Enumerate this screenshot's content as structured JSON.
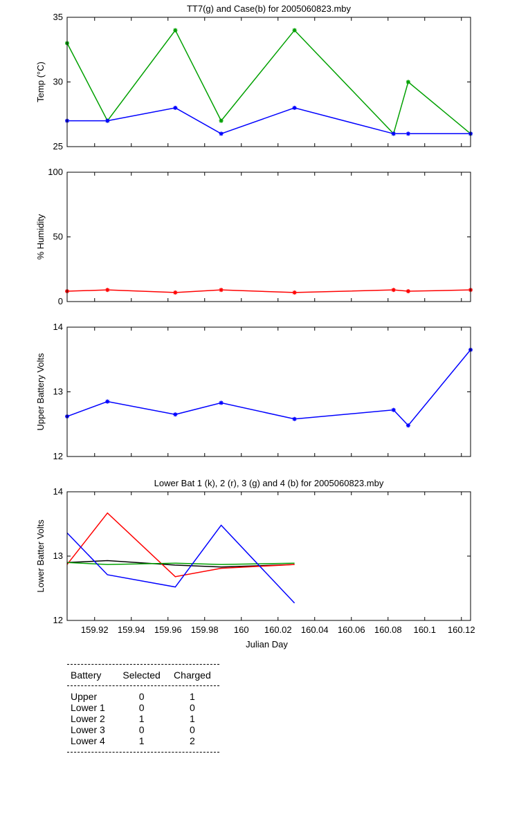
{
  "chart_data": [
    {
      "type": "line",
      "title": "TT7(g) and Case(b) for 2005060823.mby",
      "xlabel": "",
      "ylabel": "Temp  (°C)",
      "xlim": [
        159.905,
        160.125
      ],
      "ylim": [
        25,
        35
      ],
      "yticks": [
        "25",
        "30",
        "35"
      ],
      "x": [
        159.905,
        159.927,
        159.964,
        159.989,
        160.029,
        160.083,
        160.091,
        160.125
      ],
      "series": [
        {
          "name": "TT7",
          "color": "#00a000",
          "markers": true,
          "values": [
            33,
            27,
            34,
            27,
            34,
            26,
            30,
            26
          ]
        },
        {
          "name": "Case",
          "color": "#0000ff",
          "markers": true,
          "values": [
            27,
            27,
            28,
            26,
            28,
            26,
            26,
            26
          ]
        }
      ]
    },
    {
      "type": "line",
      "title": "",
      "xlabel": "",
      "ylabel": "% Humidity",
      "xlim": [
        159.905,
        160.125
      ],
      "ylim": [
        0,
        100
      ],
      "yticks": [
        "0",
        "50",
        "100"
      ],
      "x": [
        159.905,
        159.927,
        159.964,
        159.989,
        160.029,
        160.083,
        160.091,
        160.125
      ],
      "series": [
        {
          "color": "#ff0000",
          "markers": true,
          "values": [
            8,
            9,
            7,
            9,
            7,
            9,
            8,
            9
          ]
        }
      ]
    },
    {
      "type": "line",
      "title": "",
      "xlabel": "",
      "ylabel": "Upper Battery Volts",
      "xlim": [
        159.905,
        160.125
      ],
      "ylim": [
        12,
        14
      ],
      "yticks": [
        "12",
        "13",
        "14"
      ],
      "x": [
        159.905,
        159.927,
        159.964,
        159.989,
        160.029,
        160.083,
        160.091,
        160.125
      ],
      "series": [
        {
          "color": "#0000ff",
          "markers": true,
          "values": [
            12.62,
            12.85,
            12.65,
            12.83,
            12.58,
            12.72,
            12.48,
            13.65
          ]
        }
      ]
    },
    {
      "type": "line",
      "title": "Lower Bat 1 (k), 2 (r), 3 (g) and 4 (b) for 2005060823.mby",
      "xlabel": "Julian Day",
      "ylabel": "Lower Batter Volts",
      "xlim": [
        159.905,
        160.125
      ],
      "ylim": [
        12,
        14
      ],
      "yticks": [
        "12",
        "13",
        "14"
      ],
      "xticks": [
        "159.92",
        "159.94",
        "159.96",
        "159.98",
        "160",
        "160.02",
        "160.04",
        "160.06",
        "160.08",
        "160.1",
        "160.12"
      ],
      "x": [
        159.905,
        159.927,
        159.964,
        159.989,
        160.029
      ],
      "series": [
        {
          "name": "1",
          "color": "#000000",
          "markers": false,
          "values": [
            12.9,
            12.93,
            12.86,
            12.83,
            12.87
          ]
        },
        {
          "name": "2",
          "color": "#ff0000",
          "markers": false,
          "values": [
            12.87,
            13.67,
            12.68,
            12.81,
            12.87
          ]
        },
        {
          "name": "3",
          "color": "#00a000",
          "markers": false,
          "values": [
            12.9,
            12.87,
            12.89,
            12.87,
            12.89
          ]
        },
        {
          "name": "4",
          "color": "#0000ff",
          "markers": false,
          "values": [
            13.36,
            12.71,
            12.52,
            13.48,
            12.27
          ]
        }
      ]
    }
  ],
  "battery_table": {
    "headers": [
      "Battery",
      "Selected",
      "Charged"
    ],
    "rows": [
      [
        "Upper",
        "0",
        "1"
      ],
      [
        "Lower 1",
        "0",
        "0"
      ],
      [
        "Lower 2",
        "1",
        "1"
      ],
      [
        "Lower 3",
        "0",
        "0"
      ],
      [
        "Lower 4",
        "1",
        "2"
      ]
    ]
  }
}
